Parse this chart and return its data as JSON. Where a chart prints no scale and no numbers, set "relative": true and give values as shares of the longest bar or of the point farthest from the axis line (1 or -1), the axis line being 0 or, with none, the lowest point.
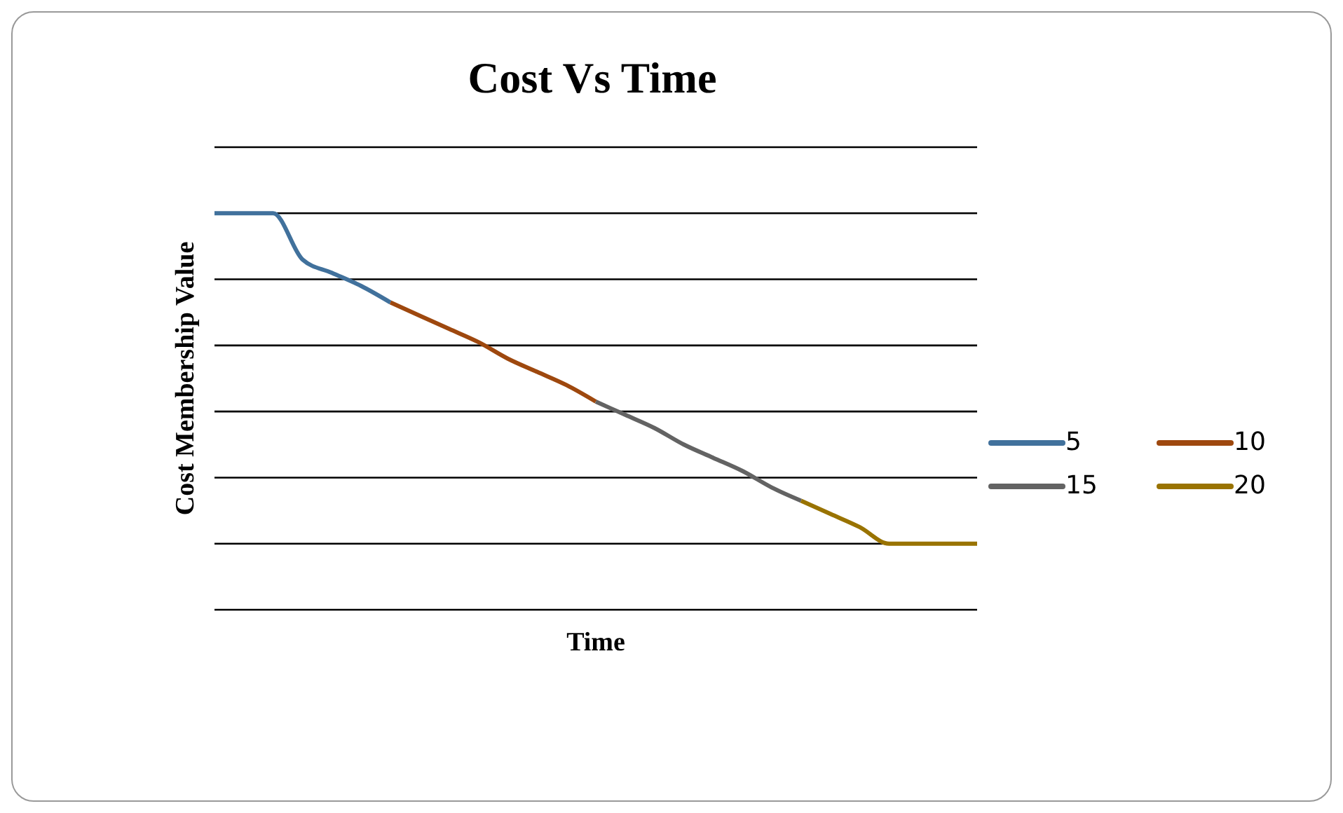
{
  "chart_data": {
    "type": "line",
    "title": "Cost Vs Time",
    "xlabel": "Time",
    "ylabel": "Cost Membership Value",
    "relative": true,
    "grid": "y",
    "legend": "right",
    "marker": "none",
    "line_style": "solid",
    "categories": [
      null,
      null,
      null,
      null,
      null,
      null,
      null,
      null,
      null,
      null,
      null,
      null,
      null,
      null,
      null,
      null,
      null,
      null,
      null,
      null,
      null,
      null,
      null,
      null,
      null,
      null,
      null
    ],
    "series": [
      {
        "name": "5",
        "color": "#41719c",
        "values": [
          1,
          1,
          1,
          0.86,
          0.82,
          0.78,
          0.73,
          null,
          null,
          null,
          null,
          null,
          null,
          null,
          null,
          null,
          null,
          null,
          null,
          null,
          null,
          null,
          null,
          null,
          null,
          null,
          null
        ]
      },
      {
        "name": "10",
        "color": "#9e480e",
        "values": [
          null,
          null,
          null,
          null,
          null,
          null,
          0.73,
          0.69,
          0.65,
          0.61,
          0.56,
          0.52,
          0.48,
          0.43,
          null,
          null,
          null,
          null,
          null,
          null,
          null,
          null,
          null,
          null,
          null,
          null,
          null
        ]
      },
      {
        "name": "15",
        "color": "#636363",
        "values": [
          null,
          null,
          null,
          null,
          null,
          null,
          null,
          null,
          null,
          null,
          null,
          null,
          null,
          0.43,
          0.39,
          0.35,
          0.3,
          0.26,
          0.22,
          0.17,
          0.13,
          null,
          null,
          null,
          null,
          null,
          null
        ]
      },
      {
        "name": "20",
        "color": "#997300",
        "values": [
          null,
          null,
          null,
          null,
          null,
          null,
          null,
          null,
          null,
          null,
          null,
          null,
          null,
          null,
          null,
          null,
          null,
          null,
          null,
          null,
          0.13,
          0.09,
          0.05,
          0,
          0,
          0,
          0
        ]
      }
    ]
  }
}
